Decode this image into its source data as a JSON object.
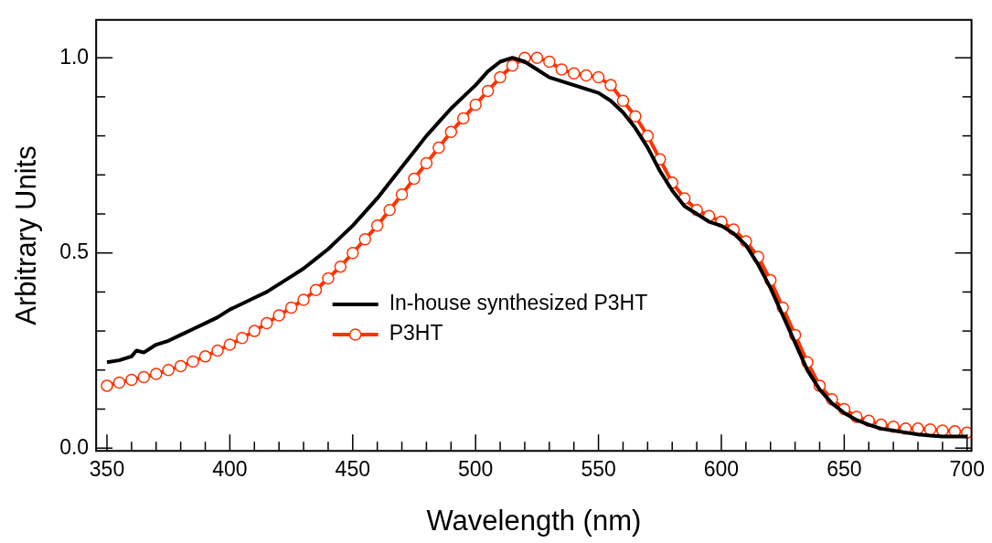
{
  "chart_data": {
    "type": "line",
    "xlabel": "Wavelength (nm)",
    "ylabel": "Arbitrary Units",
    "xlim": [
      345.6,
      701.8
    ],
    "ylim": [
      -0.007,
      1.097
    ],
    "xticks": [
      350,
      {
        "value": 360,
        "label": null
      },
      {
        "value": 370,
        "label": null
      },
      {
        "value": 380,
        "label": null
      },
      {
        "value": 390,
        "label": null
      },
      400,
      {
        "value": 410,
        "label": null
      },
      {
        "value": 420,
        "label": null
      },
      {
        "value": 430,
        "label": null
      },
      {
        "value": 440,
        "label": null
      },
      450,
      {
        "value": 460,
        "label": null
      },
      {
        "value": 470,
        "label": null
      },
      {
        "value": 480,
        "label": null
      },
      {
        "value": 490,
        "label": null
      },
      500,
      {
        "value": 510,
        "label": null
      },
      {
        "value": 520,
        "label": null
      },
      {
        "value": 530,
        "label": null
      },
      {
        "value": 540,
        "label": null
      },
      550,
      {
        "value": 560,
        "label": null
      },
      {
        "value": 570,
        "label": null
      },
      {
        "value": 580,
        "label": null
      },
      {
        "value": 590,
        "label": null
      },
      600,
      {
        "value": 610,
        "label": null
      },
      {
        "value": 620,
        "label": null
      },
      {
        "value": 630,
        "label": null
      },
      {
        "value": 640,
        "label": null
      },
      650,
      {
        "value": 660,
        "label": null
      },
      {
        "value": 670,
        "label": null
      },
      {
        "value": 680,
        "label": null
      },
      {
        "value": 690,
        "label": null
      },
      700
    ],
    "yticks": [
      {
        "value": 0,
        "label": "0.0"
      },
      {
        "value": 0.1,
        "label": null
      },
      {
        "value": 0.2,
        "label": null
      },
      {
        "value": 0.3,
        "label": null
      },
      {
        "value": 0.4,
        "label": null
      },
      {
        "value": 0.5,
        "label": "0.5"
      },
      {
        "value": 0.6,
        "label": null
      },
      {
        "value": 0.7,
        "label": null
      },
      {
        "value": 0.8,
        "label": null
      },
      {
        "value": 0.9,
        "label": null
      },
      {
        "value": 1,
        "label": "1.0"
      }
    ],
    "grid": false,
    "legend": "center",
    "series": [
      {
        "name": "In-house synthesized P3HT",
        "color": "#000000",
        "marker": "none",
        "x": [
          350,
          355,
          360,
          362,
          365,
          370,
          375,
          380,
          385,
          390,
          395,
          400,
          405,
          410,
          415,
          420,
          425,
          430,
          435,
          440,
          445,
          450,
          455,
          460,
          465,
          470,
          475,
          480,
          485,
          490,
          495,
          500,
          505,
          510,
          515,
          520,
          525,
          530,
          535,
          540,
          545,
          550,
          555,
          560,
          565,
          570,
          575,
          580,
          585,
          590,
          595,
          600,
          605,
          610,
          615,
          620,
          625,
          630,
          635,
          640,
          645,
          650,
          655,
          660,
          665,
          670,
          675,
          680,
          685,
          690,
          695,
          700
        ],
        "values": [
          0.22,
          0.225,
          0.235,
          0.25,
          0.245,
          0.265,
          0.275,
          0.29,
          0.305,
          0.32,
          0.335,
          0.355,
          0.37,
          0.385,
          0.4,
          0.42,
          0.44,
          0.46,
          0.485,
          0.51,
          0.54,
          0.57,
          0.605,
          0.64,
          0.68,
          0.72,
          0.76,
          0.8,
          0.835,
          0.87,
          0.9,
          0.93,
          0.965,
          0.99,
          1.0,
          0.99,
          0.97,
          0.95,
          0.94,
          0.93,
          0.92,
          0.91,
          0.89,
          0.86,
          0.82,
          0.77,
          0.71,
          0.66,
          0.62,
          0.6,
          0.58,
          0.57,
          0.55,
          0.52,
          0.47,
          0.41,
          0.34,
          0.27,
          0.2,
          0.15,
          0.115,
          0.09,
          0.072,
          0.06,
          0.05,
          0.045,
          0.04,
          0.035,
          0.032,
          0.03,
          0.03,
          0.03
        ]
      },
      {
        "name": "P3HT",
        "color": "#ff3300",
        "marker": "circle",
        "x": [
          350,
          355,
          360,
          365,
          370,
          375,
          380,
          385,
          390,
          395,
          400,
          405,
          410,
          415,
          420,
          425,
          430,
          435,
          440,
          445,
          450,
          455,
          460,
          465,
          470,
          475,
          480,
          485,
          490,
          495,
          500,
          505,
          510,
          515,
          520,
          525,
          530,
          535,
          540,
          545,
          550,
          555,
          560,
          565,
          570,
          575,
          580,
          585,
          590,
          595,
          600,
          605,
          610,
          615,
          620,
          625,
          630,
          635,
          640,
          645,
          650,
          655,
          660,
          665,
          670,
          675,
          680,
          685,
          690,
          695,
          700
        ],
        "values": [
          0.16,
          0.168,
          0.175,
          0.182,
          0.19,
          0.2,
          0.21,
          0.222,
          0.235,
          0.25,
          0.265,
          0.282,
          0.3,
          0.32,
          0.34,
          0.36,
          0.38,
          0.405,
          0.435,
          0.465,
          0.5,
          0.535,
          0.57,
          0.61,
          0.65,
          0.69,
          0.73,
          0.77,
          0.81,
          0.845,
          0.88,
          0.915,
          0.95,
          0.98,
          1.0,
          1.0,
          0.99,
          0.97,
          0.96,
          0.955,
          0.95,
          0.93,
          0.89,
          0.85,
          0.8,
          0.74,
          0.68,
          0.64,
          0.61,
          0.595,
          0.58,
          0.56,
          0.53,
          0.49,
          0.43,
          0.36,
          0.29,
          0.22,
          0.16,
          0.125,
          0.1,
          0.08,
          0.07,
          0.06,
          0.055,
          0.05,
          0.05,
          0.048,
          0.045,
          0.043,
          0.04
        ]
      }
    ]
  }
}
